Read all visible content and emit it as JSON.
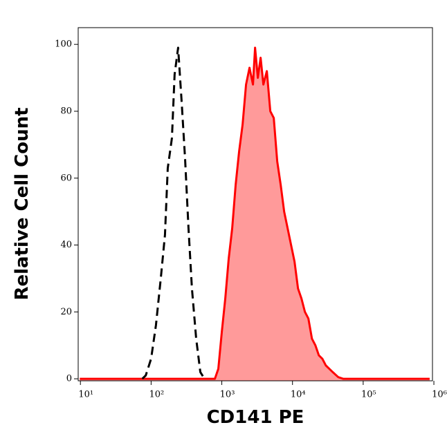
{
  "chart_data": {
    "type": "histogram-overlay",
    "x_label": "CD141 PE",
    "y_label": "Relative Cell Count",
    "x_scale": "log",
    "xlim": [
      9.3,
      955000
    ],
    "xticks": [
      {
        "value": 10,
        "label": "10¹"
      },
      {
        "value": 100,
        "label": "10²"
      },
      {
        "value": 1000,
        "label": "10³"
      },
      {
        "value": 10000,
        "label": "10⁴"
      },
      {
        "value": 100000,
        "label": "10⁵"
      },
      {
        "value": 1000000,
        "label": "10⁶"
      }
    ],
    "ylim": [
      -0.6,
      105
    ],
    "yticks": [
      0,
      20,
      40,
      60,
      80,
      100
    ],
    "series": [
      {
        "color": "#ff0000",
        "fill_color": "#ff9a9a",
        "linestyle": "solid",
        "x": [
          9.8,
          798,
          893,
          1000,
          1120,
          1253,
          1403,
          1570,
          1758,
          1968,
          2203,
          2466,
          2761,
          2955,
          3236,
          3540,
          3873,
          4335,
          4853,
          5433,
          6081,
          6808,
          7621,
          8531,
          9550,
          10690,
          11967,
          13397,
          14997,
          16788,
          18836,
          21086,
          23605,
          26424,
          29580,
          33113,
          37068,
          44360,
          52000,
          871000
        ],
        "values": [
          0,
          0,
          3,
          14,
          24,
          36,
          45,
          58,
          68,
          76,
          88,
          93,
          88,
          99,
          90,
          96,
          88,
          92,
          80,
          78,
          65,
          58,
          50,
          45,
          40,
          35,
          27,
          24,
          20,
          18,
          12,
          10,
          7,
          6,
          4,
          3,
          2,
          0.5,
          0,
          0
        ]
      },
      {
        "color": "#000000",
        "fill_color": null,
        "linestyle": "dashed",
        "x": [
          75,
          84,
          100,
          117,
          137,
          157,
          172,
          197,
          215,
          241,
          270,
          302,
          338,
          378,
          434,
          497,
          569
        ],
        "values": [
          0,
          1,
          6,
          16,
          30,
          43,
          63,
          72,
          91,
          99,
          83,
          66,
          45,
          27,
          12,
          2,
          0
        ]
      }
    ]
  }
}
